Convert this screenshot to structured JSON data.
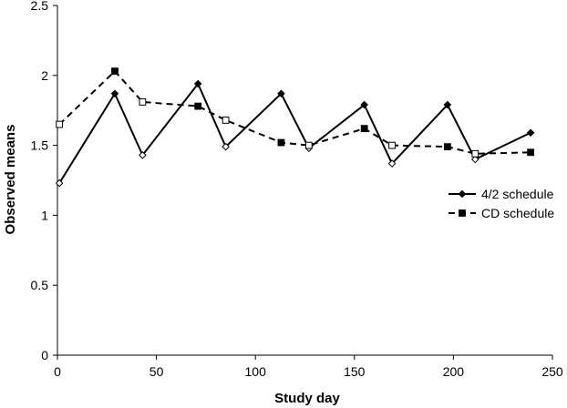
{
  "chart_data": {
    "type": "line",
    "title": "",
    "xlabel": "Study day",
    "ylabel": "Observed means",
    "xlim": [
      0,
      250
    ],
    "ylim": [
      0,
      2.5
    ],
    "xticks": [
      "0",
      "50",
      "100",
      "150",
      "200",
      "250"
    ],
    "yticks": [
      "0",
      "0.5",
      "1",
      "1.5",
      "2",
      "2.5"
    ],
    "grid": false,
    "legend_position": "right",
    "series": [
      {
        "name": "4/2 schedule",
        "line_style": "solid",
        "marker": "diamond",
        "color": "#000000",
        "points": [
          {
            "x": 1,
            "y": 1.23,
            "filled": false
          },
          {
            "x": 29,
            "y": 1.87,
            "filled": true
          },
          {
            "x": 43,
            "y": 1.43,
            "filled": false
          },
          {
            "x": 71,
            "y": 1.94,
            "filled": true
          },
          {
            "x": 85,
            "y": 1.49,
            "filled": false
          },
          {
            "x": 113,
            "y": 1.87,
            "filled": true
          },
          {
            "x": 127,
            "y": 1.48,
            "filled": false
          },
          {
            "x": 155,
            "y": 1.79,
            "filled": true
          },
          {
            "x": 169,
            "y": 1.37,
            "filled": false
          },
          {
            "x": 197,
            "y": 1.79,
            "filled": true
          },
          {
            "x": 211,
            "y": 1.4,
            "filled": false
          },
          {
            "x": 239,
            "y": 1.59,
            "filled": true
          }
        ]
      },
      {
        "name": "CD schedule",
        "line_style": "dashed",
        "marker": "square",
        "color": "#000000",
        "points": [
          {
            "x": 1,
            "y": 1.65,
            "filled": false
          },
          {
            "x": 29,
            "y": 2.03,
            "filled": true
          },
          {
            "x": 43,
            "y": 1.81,
            "filled": false
          },
          {
            "x": 71,
            "y": 1.78,
            "filled": true
          },
          {
            "x": 85,
            "y": 1.68,
            "filled": false
          },
          {
            "x": 113,
            "y": 1.52,
            "filled": true
          },
          {
            "x": 127,
            "y": 1.5,
            "filled": false
          },
          {
            "x": 155,
            "y": 1.62,
            "filled": true
          },
          {
            "x": 169,
            "y": 1.5,
            "filled": false
          },
          {
            "x": 197,
            "y": 1.49,
            "filled": true
          },
          {
            "x": 211,
            "y": 1.44,
            "filled": false
          },
          {
            "x": 239,
            "y": 1.45,
            "filled": true
          }
        ]
      }
    ]
  }
}
